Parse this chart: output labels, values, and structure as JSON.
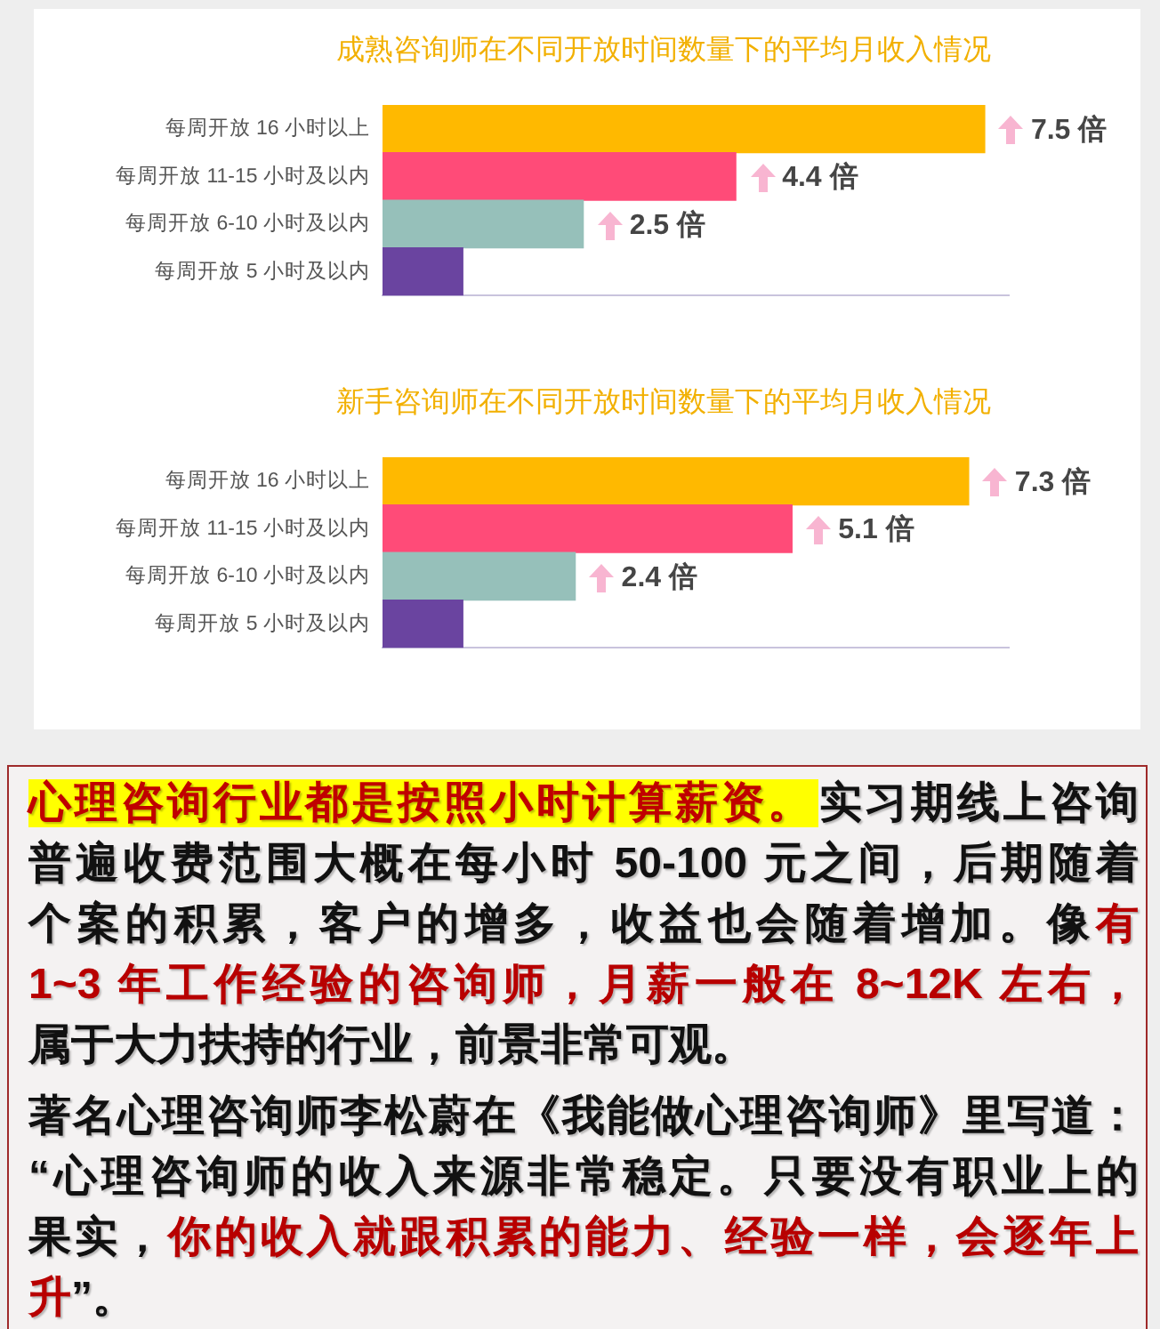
{
  "chart_data": [
    {
      "type": "bar",
      "orientation": "horizontal",
      "title": "成熟咨询师在不同开放时间数量下的平均月收入情况",
      "categories": [
        "每周开放 16 小时以上",
        "每周开放 11-15 小时及以内",
        "每周开放 6-10 小时及以内",
        "每周开放 5 小时及以内"
      ],
      "values": [
        7.5,
        4.4,
        2.5,
        1
      ],
      "colors": [
        "#ffb900",
        "#ff4b78",
        "#96c0ba",
        "#6a44a0"
      ],
      "value_labels": [
        "7.5 倍",
        "4.4 倍",
        "2.5 倍",
        null
      ],
      "xlim": [
        0,
        7.8
      ],
      "tick_labels": "y"
    },
    {
      "type": "bar",
      "orientation": "horizontal",
      "title": "新手咨询师在不同开放时间数量下的平均月收入情况",
      "categories": [
        "每周开放 16 小时以上",
        "每周开放 11-15 小时及以内",
        "每周开放 6-10 小时及以内",
        "每周开放 5 小时及以内"
      ],
      "values": [
        7.3,
        5.1,
        2.4,
        1
      ],
      "colors": [
        "#ffb900",
        "#ff4b78",
        "#96c0ba",
        "#6a44a0"
      ],
      "value_labels": [
        "7.3 倍",
        "5.1 倍",
        "2.4 倍",
        null
      ],
      "xlim": [
        0,
        7.8
      ],
      "tick_labels": "y"
    },
    {
      "type": "other",
      "annotations": [
        "心理咨询行业都是按照小时计算薪资。",
        "实习期线上咨询",
        "普遍收费范围大概在每小时 50-100 元之间，后期随着",
        "个案的积累，客户的增多，收益也会随着增加。像",
        "有",
        "1~3 年工作经验的咨询师，月薪一般在 8~12K 左右，",
        "属于大力扶持的行业，前景非常可观。",
        "著名心理咨询师李松蔚在《我能做心理咨询师》里写道：",
        "“心理咨询师的收入来源非常稳定。只要没有职业上的",
        "果实，",
        "你的收入就跟积累的能力、经验一样，会逐年上",
        "升",
        "”。"
      ]
    }
  ]
}
